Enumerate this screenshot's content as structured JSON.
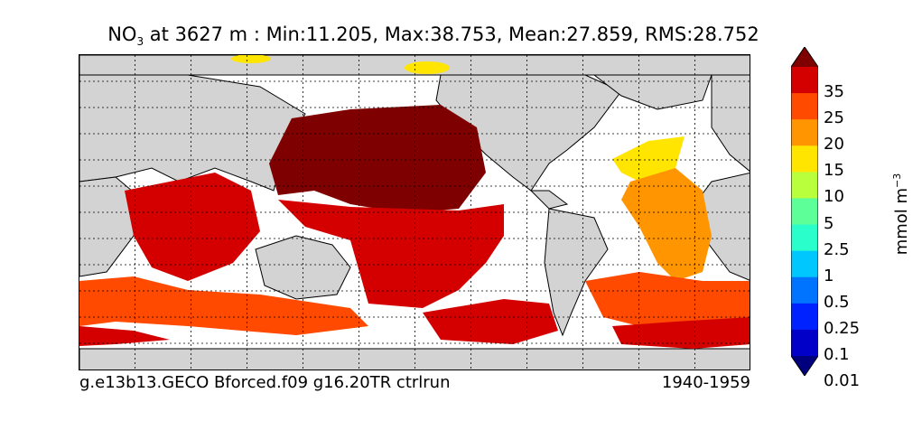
{
  "title": {
    "variable_main": "NO",
    "variable_sub": "3",
    "rest": " at 3627 m : Min:11.205, Max:38.753, Mean:27.859, RMS:28.752"
  },
  "caption": {
    "run": "g.e13b13.GECO Bforced.f09 g16.20TR ctrlrun",
    "period": "1940-1959"
  },
  "colorbar": {
    "unit_main": "mmol m",
    "unit_exp": "−3",
    "levels": [
      "35",
      "25",
      "20",
      "15",
      "10",
      "5",
      "2.5",
      "1",
      "0.5",
      "0.25",
      "0.1",
      "0.01"
    ],
    "colors": [
      "#7f0000",
      "#d40000",
      "#ff4a00",
      "#ff9500",
      "#ffe500",
      "#b9ff3c",
      "#5dff99",
      "#2affcc",
      "#00c8ff",
      "#0073ff",
      "#0022ff",
      "#0000c8",
      "#00007f"
    ]
  },
  "map_colors": {
    "land": "#d3d3d3",
    "ocean_missing": "#ffffff"
  }
}
